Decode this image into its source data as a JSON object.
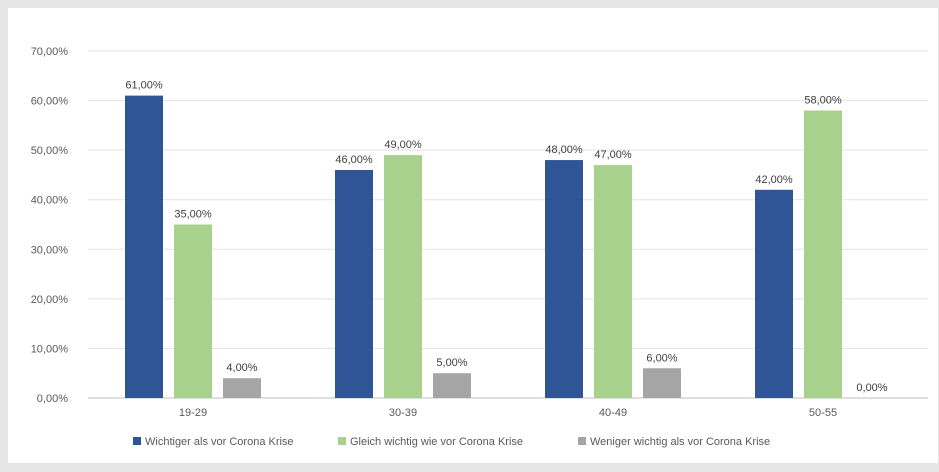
{
  "chart_data": {
    "type": "bar",
    "title": "",
    "xlabel": "",
    "ylabel": "",
    "categories": [
      "19-29",
      "30-39",
      "40-49",
      "50-55"
    ],
    "series": [
      {
        "name": "Wichtiger als vor Corona Krise",
        "color": "#2f5597",
        "values": [
          61,
          46,
          48,
          42
        ],
        "labels": [
          "61,00%",
          "46,00%",
          "48,00%",
          "42,00%"
        ]
      },
      {
        "name": "Gleich wichtig wie vor Corona Krise",
        "color": "#a9d18e",
        "values": [
          35,
          49,
          47,
          58
        ],
        "labels": [
          "35,00%",
          "49,00%",
          "47,00%",
          "58,00%"
        ]
      },
      {
        "name": "Weniger wichtig als vor Corona Krise",
        "color": "#a5a5a5",
        "values": [
          4,
          5,
          6,
          0
        ],
        "labels": [
          "4,00%",
          "5,00%",
          "6,00%",
          "0,00%"
        ]
      }
    ],
    "ylim": [
      0,
      70
    ],
    "yticks": [
      0,
      10,
      20,
      30,
      40,
      50,
      60,
      70
    ],
    "ytick_labels": [
      "0,00%",
      "10,00%",
      "20,00%",
      "30,00%",
      "40,00%",
      "50,00%",
      "60,00%",
      "70,00%"
    ],
    "grid": true,
    "legend_position": "bottom"
  }
}
